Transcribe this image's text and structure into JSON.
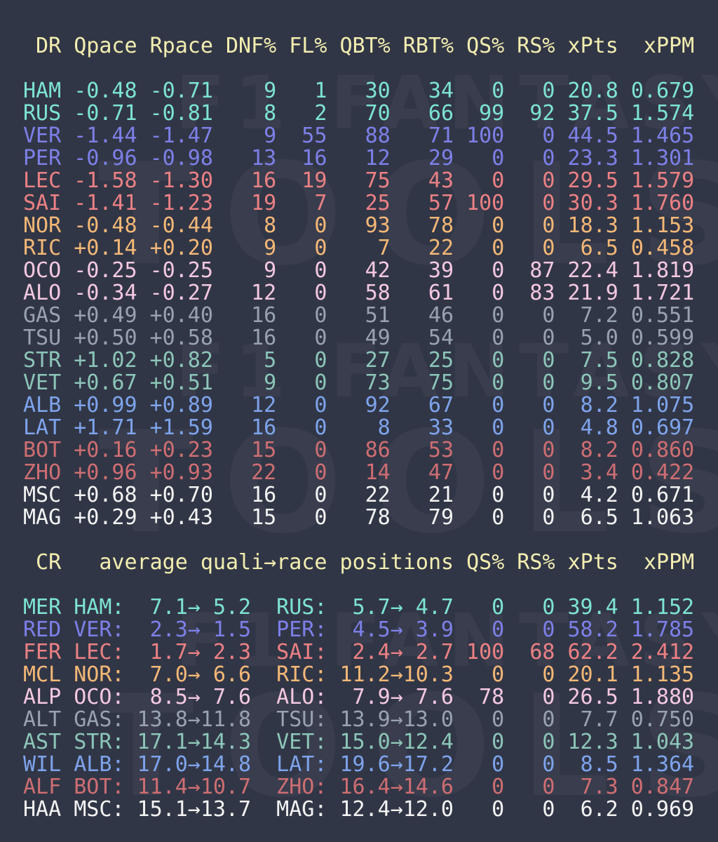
{
  "colors": {
    "background": "#313646",
    "header": "#f3eeb0",
    "watermark": "rgba(255,255,255,0.04)",
    "mer": "#7de4d2",
    "red": "#7d80e8",
    "fer": "#ec8184",
    "mcl": "#f4b877",
    "alp": "#f4c8e1",
    "alt": "#98a2b2",
    "ast": "#8cc6b8",
    "wil": "#7ea4ec",
    "alf": "#ce6e72",
    "haa": "#f4f4f4"
  },
  "watermark": {
    "line1": "F1 FANTASY",
    "line2": "TOOLS"
  },
  "arrow": "→",
  "table1": {
    "header": [
      "DR",
      "Qpace",
      "Rpace",
      "DNF%",
      "FL%",
      "QBT%",
      "RBT%",
      "QS%",
      "RS%",
      "xPts",
      "xPPM"
    ],
    "rows": [
      {
        "code": "HAM",
        "team": "mer",
        "values": [
          "-0.48",
          "-0.71",
          "9",
          "1",
          "30",
          "34",
          "0",
          "0",
          "20.8",
          "0.679"
        ]
      },
      {
        "code": "RUS",
        "team": "mer",
        "values": [
          "-0.71",
          "-0.81",
          "8",
          "2",
          "70",
          "66",
          "99",
          "92",
          "37.5",
          "1.574"
        ]
      },
      {
        "code": "VER",
        "team": "red",
        "values": [
          "-1.44",
          "-1.47",
          "9",
          "55",
          "88",
          "71",
          "100",
          "0",
          "44.5",
          "1.465"
        ]
      },
      {
        "code": "PER",
        "team": "red",
        "values": [
          "-0.96",
          "-0.98",
          "13",
          "16",
          "12",
          "29",
          "0",
          "0",
          "23.3",
          "1.301"
        ]
      },
      {
        "code": "LEC",
        "team": "fer",
        "values": [
          "-1.58",
          "-1.30",
          "16",
          "19",
          "75",
          "43",
          "0",
          "0",
          "29.5",
          "1.579"
        ]
      },
      {
        "code": "SAI",
        "team": "fer",
        "values": [
          "-1.41",
          "-1.23",
          "19",
          "7",
          "25",
          "57",
          "100",
          "0",
          "30.3",
          "1.760"
        ]
      },
      {
        "code": "NOR",
        "team": "mcl",
        "values": [
          "-0.48",
          "-0.44",
          "8",
          "0",
          "93",
          "78",
          "0",
          "0",
          "18.3",
          "1.153"
        ]
      },
      {
        "code": "RIC",
        "team": "mcl",
        "values": [
          "+0.14",
          "+0.20",
          "9",
          "0",
          "7",
          "22",
          "0",
          "0",
          "6.5",
          "0.458"
        ]
      },
      {
        "code": "OCO",
        "team": "alp",
        "values": [
          "-0.25",
          "-0.25",
          "9",
          "0",
          "42",
          "39",
          "0",
          "87",
          "22.4",
          "1.819"
        ]
      },
      {
        "code": "ALO",
        "team": "alp",
        "values": [
          "-0.34",
          "-0.27",
          "12",
          "0",
          "58",
          "61",
          "0",
          "83",
          "21.9",
          "1.721"
        ]
      },
      {
        "code": "GAS",
        "team": "alt",
        "values": [
          "+0.49",
          "+0.40",
          "16",
          "0",
          "51",
          "46",
          "0",
          "0",
          "7.2",
          "0.551"
        ]
      },
      {
        "code": "TSU",
        "team": "alt",
        "values": [
          "+0.50",
          "+0.58",
          "16",
          "0",
          "49",
          "54",
          "0",
          "0",
          "5.0",
          "0.599"
        ]
      },
      {
        "code": "STR",
        "team": "ast",
        "values": [
          "+1.02",
          "+0.82",
          "5",
          "0",
          "27",
          "25",
          "0",
          "0",
          "7.5",
          "0.828"
        ]
      },
      {
        "code": "VET",
        "team": "ast",
        "values": [
          "+0.67",
          "+0.51",
          "9",
          "0",
          "73",
          "75",
          "0",
          "0",
          "9.5",
          "0.807"
        ]
      },
      {
        "code": "ALB",
        "team": "wil",
        "values": [
          "+0.99",
          "+0.89",
          "12",
          "0",
          "92",
          "67",
          "0",
          "0",
          "8.2",
          "1.075"
        ]
      },
      {
        "code": "LAT",
        "team": "wil",
        "values": [
          "+1.71",
          "+1.59",
          "16",
          "0",
          "8",
          "33",
          "0",
          "0",
          "4.8",
          "0.697"
        ]
      },
      {
        "code": "BOT",
        "team": "alf",
        "values": [
          "+0.16",
          "+0.23",
          "15",
          "0",
          "86",
          "53",
          "0",
          "0",
          "8.2",
          "0.860"
        ]
      },
      {
        "code": "ZHO",
        "team": "alf",
        "values": [
          "+0.96",
          "+0.93",
          "22",
          "0",
          "14",
          "47",
          "0",
          "0",
          "3.4",
          "0.422"
        ]
      },
      {
        "code": "MSC",
        "team": "haa",
        "values": [
          "+0.68",
          "+0.70",
          "16",
          "0",
          "22",
          "21",
          "0",
          "0",
          "4.2",
          "0.671"
        ]
      },
      {
        "code": "MAG",
        "team": "haa",
        "values": [
          "+0.29",
          "+0.43",
          "15",
          "0",
          "78",
          "79",
          "0",
          "0",
          "6.5",
          "1.063"
        ]
      }
    ]
  },
  "table2": {
    "header": {
      "cr": "CR",
      "mid": "average quali→race positions",
      "qs": "QS%",
      "rs": "RS%",
      "xpts": "xPts",
      "xppm": "xPPM"
    },
    "rows": [
      {
        "team": "MER",
        "color": "mer",
        "d1": "HAM:",
        "q1": "7.1",
        "r1": "5.2",
        "d2": "RUS:",
        "q2": "5.7",
        "r2": "4.7",
        "qs": "0",
        "rs": "0",
        "xpts": "39.4",
        "xppm": "1.152"
      },
      {
        "team": "RED",
        "color": "red",
        "d1": "VER:",
        "q1": "2.3",
        "r1": "1.5",
        "d2": "PER:",
        "q2": "4.5",
        "r2": "3.9",
        "qs": "0",
        "rs": "0",
        "xpts": "58.2",
        "xppm": "1.785"
      },
      {
        "team": "FER",
        "color": "fer",
        "d1": "LEC:",
        "q1": "1.7",
        "r1": "2.3",
        "d2": "SAI:",
        "q2": "2.4",
        "r2": "2.7",
        "qs": "100",
        "rs": "68",
        "xpts": "62.2",
        "xppm": "2.412"
      },
      {
        "team": "MCL",
        "color": "mcl",
        "d1": "NOR:",
        "q1": "7.0",
        "r1": "6.6",
        "d2": "RIC:",
        "q2": "11.2",
        "r2": "10.3",
        "qs": "0",
        "rs": "0",
        "xpts": "20.1",
        "xppm": "1.135"
      },
      {
        "team": "ALP",
        "color": "alp",
        "d1": "OCO:",
        "q1": "8.5",
        "r1": "7.6",
        "d2": "ALO:",
        "q2": "7.9",
        "r2": "7.6",
        "qs": "78",
        "rs": "0",
        "xpts": "26.5",
        "xppm": "1.880"
      },
      {
        "team": "ALT",
        "color": "alt",
        "d1": "GAS:",
        "q1": "13.8",
        "r1": "11.8",
        "d2": "TSU:",
        "q2": "13.9",
        "r2": "13.0",
        "qs": "0",
        "rs": "0",
        "xpts": "7.7",
        "xppm": "0.750"
      },
      {
        "team": "AST",
        "color": "ast",
        "d1": "STR:",
        "q1": "17.1",
        "r1": "14.3",
        "d2": "VET:",
        "q2": "15.0",
        "r2": "12.4",
        "qs": "0",
        "rs": "0",
        "xpts": "12.3",
        "xppm": "1.043"
      },
      {
        "team": "WIL",
        "color": "wil",
        "d1": "ALB:",
        "q1": "17.0",
        "r1": "14.8",
        "d2": "LAT:",
        "q2": "19.6",
        "r2": "17.2",
        "qs": "0",
        "rs": "0",
        "xpts": "8.5",
        "xppm": "1.364"
      },
      {
        "team": "ALF",
        "color": "alf",
        "d1": "BOT:",
        "q1": "11.4",
        "r1": "10.7",
        "d2": "ZHO:",
        "q2": "16.4",
        "r2": "14.6",
        "qs": "0",
        "rs": "0",
        "xpts": "7.3",
        "xppm": "0.847"
      },
      {
        "team": "HAA",
        "color": "haa",
        "d1": "MSC:",
        "q1": "15.1",
        "r1": "13.7",
        "d2": "MAG:",
        "q2": "12.4",
        "r2": "12.0",
        "qs": "0",
        "rs": "0",
        "xpts": "6.2",
        "xppm": "0.969"
      }
    ]
  }
}
